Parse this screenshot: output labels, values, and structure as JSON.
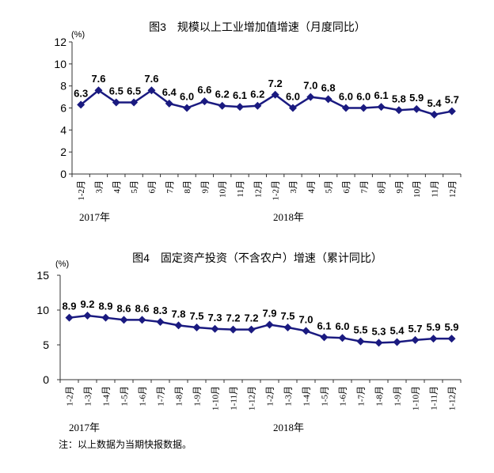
{
  "chart_data": [
    {
      "type": "line",
      "title": "图3　规模以上工业增加值增速（月度同比）",
      "unit": "(%)",
      "ylim": [
        0,
        12
      ],
      "yticks": [
        0,
        2,
        4,
        6,
        8,
        10,
        12
      ],
      "grid": false,
      "categories": [
        "1-2月",
        "3月",
        "4月",
        "5月",
        "6月",
        "7月",
        "8月",
        "9月",
        "10月",
        "11月",
        "12月",
        "1-2月",
        "3月",
        "4月",
        "5月",
        "6月",
        "7月",
        "8月",
        "9月",
        "10月",
        "11月",
        "12月"
      ],
      "year_labels": [
        "2017年",
        "2018年"
      ],
      "series": [
        {
          "values": [
            6.3,
            7.6,
            6.5,
            6.5,
            7.6,
            6.4,
            6.0,
            6.6,
            6.2,
            6.1,
            6.2,
            7.2,
            6.0,
            7.0,
            6.8,
            6.0,
            6.0,
            6.1,
            5.8,
            5.9,
            5.4,
            5.7
          ],
          "color": "#1a1a80",
          "marker": "diamond"
        }
      ]
    },
    {
      "type": "line",
      "title": "图4　固定资产投资（不含农户）增速（累计同比）",
      "unit": "(%)",
      "ylim": [
        0,
        15
      ],
      "yticks": [
        0,
        5,
        10,
        15
      ],
      "grid": false,
      "categories": [
        "1-2月",
        "1-3月",
        "1-4月",
        "1-5月",
        "1-6月",
        "1-7月",
        "1-8月",
        "1-9月",
        "1-10月",
        "1-11月",
        "1-12月",
        "1-2月",
        "1-3月",
        "1-4月",
        "1-5月",
        "1-6月",
        "1-7月",
        "1-8月",
        "1-9月",
        "1-10月",
        "1-11月",
        "1-12月"
      ],
      "year_labels": [
        "2017年",
        "2018年"
      ],
      "series": [
        {
          "values": [
            8.9,
            9.2,
            8.9,
            8.6,
            8.6,
            8.3,
            7.8,
            7.5,
            7.3,
            7.2,
            7.2,
            7.9,
            7.5,
            7.0,
            6.1,
            6.0,
            5.5,
            5.3,
            5.4,
            5.7,
            5.9,
            5.9
          ],
          "color": "#1a1a80",
          "marker": "diamond"
        }
      ]
    }
  ],
  "note": "注：以上数据为当期快报数据。"
}
